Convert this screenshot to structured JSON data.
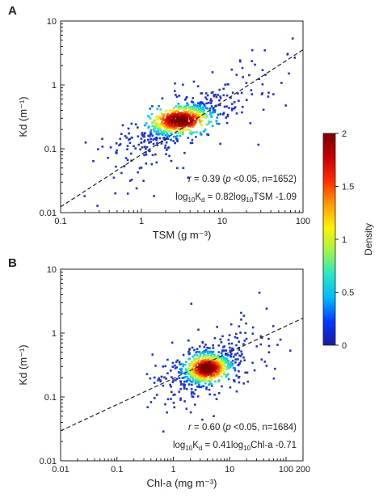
{
  "colors": {
    "axis": "#222222",
    "fit_line": "#222222",
    "point_low": "#2233cc",
    "colormap": [
      "#1a1a9e",
      "#0039ff",
      "#00b8ff",
      "#27e6c8",
      "#9ff54a",
      "#fff200",
      "#ff9b00",
      "#ff2a00",
      "#c40000",
      "#7a0000"
    ]
  },
  "chart_data": [
    {
      "type": "scatter",
      "panel_label": "A",
      "xlabel": "TSM (g m⁻³)",
      "ylabel": "Kd (m⁻¹)",
      "xscale": "log",
      "yscale": "log",
      "xlim": [
        0.1,
        100
      ],
      "ylim": [
        0.01,
        10
      ],
      "x_ticks": [
        "0.1",
        "1",
        "10",
        "100"
      ],
      "y_ticks": [
        "0.01",
        "0.1",
        "1",
        "10"
      ],
      "fit": {
        "slope": 0.82,
        "intercept": -1.09,
        "style": "dashed"
      },
      "stats": {
        "r_text": "= 0.39 (",
        "p_text": "p",
        "rest_text": " <0.05, n=1652)"
      },
      "equation": {
        "prefix": "log",
        "sub1": "10",
        "mid": "K",
        "sub2": "d",
        "tail": " = 0.82log",
        "sub3": "10",
        "end": "TSM -1.09"
      },
      "n": 1652,
      "cluster": {
        "x_center": 3.0,
        "y_center": 0.28,
        "note_density_max": 2
      }
    },
    {
      "type": "scatter",
      "panel_label": "B",
      "xlabel": "Chl-a (mg m⁻³)",
      "ylabel": "Kd (m⁻¹)",
      "xscale": "log",
      "yscale": "log",
      "xlim": [
        0.01,
        200
      ],
      "ylim": [
        0.01,
        10
      ],
      "x_ticks": [
        "0.01",
        "0.1",
        "1",
        "10",
        "100",
        "200"
      ],
      "y_ticks": [
        "0.01",
        "0.1",
        "1",
        "10"
      ],
      "fit": {
        "slope": 0.41,
        "intercept": -0.71,
        "style": "dashed"
      },
      "stats": {
        "r_text": "= 0.60 (",
        "p_text": "p",
        "rest_text": " <0.05, n=1684)"
      },
      "equation": {
        "prefix": "log",
        "sub1": "10",
        "mid": "K",
        "sub2": "d",
        "tail": " = 0.41log",
        "sub3": "10",
        "end": "Chl-a -0.71"
      },
      "n": 1684,
      "cluster": {
        "x_center": 4.0,
        "y_center": 0.28
      }
    }
  ],
  "colorbar": {
    "label": "Density",
    "min": 0,
    "max": 2,
    "ticks": [
      "0",
      "0.5",
      "1",
      "1.5",
      "2"
    ]
  }
}
